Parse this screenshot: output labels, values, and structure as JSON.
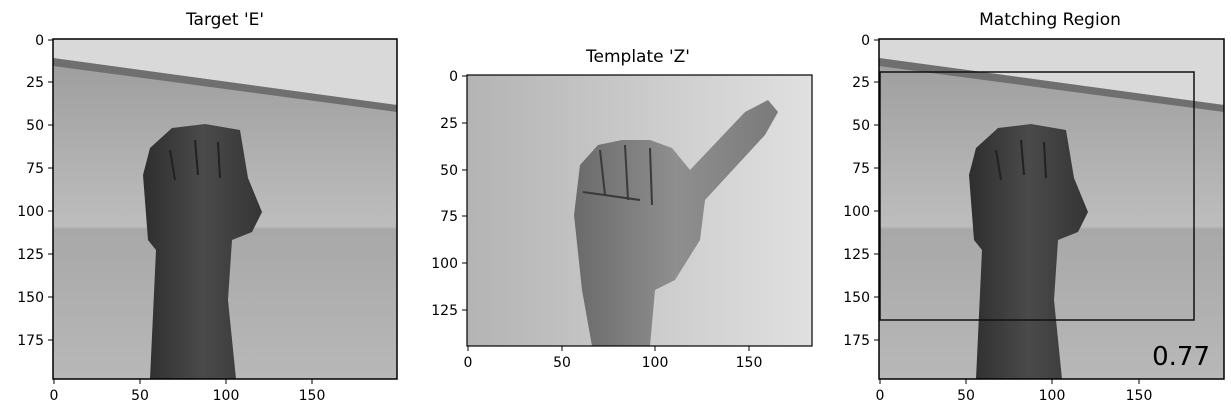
{
  "panels": [
    {
      "title": "Target 'E'",
      "yticks": [
        "0",
        "25",
        "50",
        "75",
        "100",
        "125",
        "150",
        "175"
      ],
      "xticks": [
        "0",
        "50",
        "100",
        "150"
      ],
      "image": "grayscale photo of a fist hand sign (ASL letter E) against a light wall"
    },
    {
      "title": "Template 'Z'",
      "yticks": [
        "0",
        "25",
        "50",
        "75",
        "100",
        "125"
      ],
      "xticks": [
        "0",
        "50",
        "100",
        "150"
      ],
      "image": "grayscale photo of a hand with index finger extended (ASL letter Z)"
    },
    {
      "title": "Matching Region",
      "yticks": [
        "0",
        "25",
        "50",
        "75",
        "100",
        "125",
        "150",
        "175"
      ],
      "xticks": [
        "0",
        "50",
        "100",
        "150"
      ],
      "image": "same fist photo as target with a rectangle marking the best match",
      "score": "0.77"
    }
  ]
}
